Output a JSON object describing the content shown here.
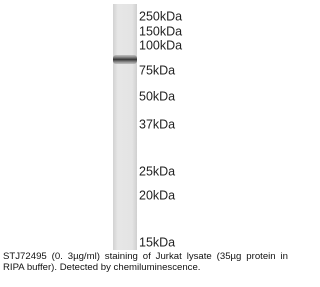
{
  "markers": [
    "250kDa",
    "150kDa",
    "100kDa",
    "75kDa",
    "50kDa",
    "37kDa",
    "25kDa",
    "20kDa",
    "15kDa"
  ],
  "caption": "STJ72495 (0. 3µg/ml) staining of Jurkat lysate (35µg protein in RIPA buffer). Detected by chemiluminescence."
}
